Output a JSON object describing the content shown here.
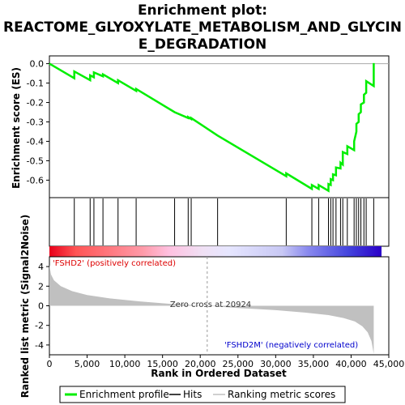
{
  "chart_data": {
    "type": "line",
    "title_line1": "Enrichment plot:",
    "title_line2": "REACTOME_GLYOXYLATE_METABOLISM_AND_GLYCIN",
    "title_line3": "E_DEGRADATION",
    "ylabel_top": "Enrichment score (ES)",
    "ylabel_bottom": "Ranked list metric (Signal2Noise)",
    "xlabel": "Rank in Ordered Dataset",
    "xlim": [
      0,
      45000
    ],
    "es_ylim": [
      -0.69,
      0.04
    ],
    "es_yticks": [
      0.0,
      -0.1,
      -0.2,
      -0.3,
      -0.4,
      -0.5,
      -0.6
    ],
    "es_ytick_labels": [
      "0.0",
      "-0.1",
      "-0.2",
      "-0.3",
      "-0.4",
      "-0.5",
      "-0.6"
    ],
    "metric_ylim": [
      -5,
      5
    ],
    "metric_yticks": [
      4,
      2,
      0,
      -2,
      -4
    ],
    "metric_ytick_labels": [
      "4",
      "2",
      "0",
      "-2",
      "-4"
    ],
    "xticks": [
      0,
      5000,
      10000,
      15000,
      20000,
      25000,
      30000,
      35000,
      40000,
      45000
    ],
    "xtick_labels": [
      "0",
      "5,000",
      "10,000",
      "15,000",
      "20,000",
      "25,000",
      "30,000",
      "35,000",
      "40,000",
      "45,000"
    ],
    "series": [
      {
        "name": "Enrichment profile",
        "color": "#00ee00",
        "x": [
          0,
          3300,
          3300,
          5400,
          5400,
          5900,
          5900,
          7100,
          7100,
          9100,
          9100,
          11500,
          11500,
          16600,
          16600,
          18400,
          18400,
          18800,
          18800,
          22300,
          22300,
          31400,
          31400,
          34800,
          34800,
          35700,
          35700,
          37000,
          37000,
          37300,
          37300,
          37600,
          37600,
          38000,
          38000,
          38600,
          38600,
          38900,
          38900,
          39500,
          39500,
          40400,
          40400,
          40700,
          40700,
          41000,
          41000,
          41300,
          41300,
          41700,
          41700,
          42000,
          42000,
          43000,
          43000
        ],
        "y": [
          0.0,
          -0.075,
          -0.04,
          -0.085,
          -0.06,
          -0.07,
          -0.045,
          -0.065,
          -0.055,
          -0.1,
          -0.085,
          -0.14,
          -0.13,
          -0.25,
          -0.25,
          -0.28,
          -0.275,
          -0.285,
          -0.28,
          -0.37,
          -0.37,
          -0.58,
          -0.565,
          -0.645,
          -0.625,
          -0.645,
          -0.625,
          -0.655,
          -0.62,
          -0.625,
          -0.595,
          -0.6,
          -0.57,
          -0.575,
          -0.535,
          -0.54,
          -0.51,
          -0.52,
          -0.455,
          -0.465,
          -0.425,
          -0.445,
          -0.4,
          -0.35,
          -0.31,
          -0.3,
          -0.26,
          -0.25,
          -0.21,
          -0.2,
          -0.16,
          -0.15,
          -0.09,
          -0.115,
          0.003
        ]
      },
      {
        "name": "Hits",
        "color": "#000000",
        "x": [
          3300,
          5400,
          5900,
          7100,
          9100,
          11500,
          16600,
          18400,
          18800,
          22300,
          31400,
          34800,
          35700,
          37000,
          37300,
          37600,
          38000,
          38600,
          38900,
          39500,
          40400,
          40700,
          41000,
          41300,
          41700,
          42000,
          43000
        ]
      },
      {
        "name": "Ranking metric scores",
        "color": "#c0c0c0",
        "x": [
          0,
          200,
          600,
          1500,
          3000,
          5000,
          8000,
          12000,
          16000,
          20924,
          25000,
          30000,
          34000,
          37000,
          39000,
          40500,
          41500,
          42200,
          42700,
          43000
        ],
        "y": [
          4.2,
          3.2,
          2.6,
          2.0,
          1.5,
          1.1,
          0.75,
          0.45,
          0.2,
          0.0,
          -0.22,
          -0.45,
          -0.7,
          -0.95,
          -1.25,
          -1.6,
          -2.1,
          -2.7,
          -3.6,
          -4.9
        ]
      }
    ],
    "zero_cross": 20924,
    "zero_cross_label": "Zero cross at 20924",
    "pos_label": "'FSHD2' (positively correlated)",
    "neg_label": "'FSHD2M' (negatively correlated)",
    "pos_label_color": "#dd0000",
    "neg_label_color": "#0000cc",
    "legend": {
      "placement": "bottom",
      "entries": [
        "Enrichment profile",
        "Hits",
        "Ranking metric scores"
      ]
    }
  }
}
